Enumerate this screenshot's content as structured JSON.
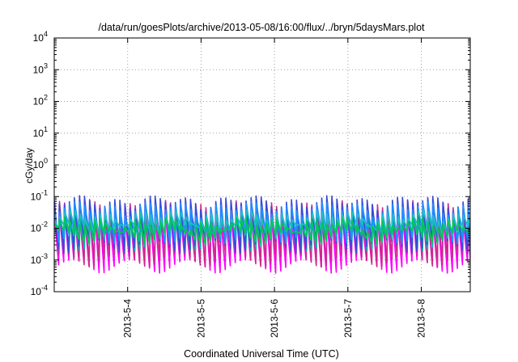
{
  "chart_data": {
    "type": "line",
    "title": "/data/run/goesPlots/archive/2013-05-08/16:00/flux/../bryn/5daysMars.plot",
    "xlabel": "Coordinated Universal Time (UTC)",
    "ylabel": "cGy/day",
    "yscale": "log",
    "grid": true,
    "ylim": [
      0.0001,
      10000
    ],
    "xlim": [
      "2013-05-03 00:00",
      "2013-05-08 16:00"
    ],
    "y_ticks": [
      {
        "value": 0.0001,
        "base": "10",
        "exp": "-4"
      },
      {
        "value": 0.001,
        "base": "10",
        "exp": "-3"
      },
      {
        "value": 0.01,
        "base": "10",
        "exp": "-2"
      },
      {
        "value": 0.1,
        "base": "10",
        "exp": "-1"
      },
      {
        "value": 1,
        "base": "10",
        "exp": "0"
      },
      {
        "value": 10,
        "base": "10",
        "exp": "1"
      },
      {
        "value": 100,
        "base": "10",
        "exp": "2"
      },
      {
        "value": 1000,
        "base": "10",
        "exp": "3"
      },
      {
        "value": 10000,
        "base": "10",
        "exp": "4"
      }
    ],
    "x_ticks": [
      "2013-5-4",
      "2013-5-5",
      "2013-5-6",
      "2013-5-7",
      "2013-5-8"
    ],
    "x_tick_hours": [
      24,
      48,
      72,
      96,
      120
    ],
    "x_range_hours": [
      0,
      136
    ],
    "cycle_hours": 1.65,
    "series": [
      {
        "color": "#ff00ff",
        "peak": 0.03,
        "trough": 0.0007
      },
      {
        "color": "#cc2a8a",
        "peak": 0.05,
        "trough": 0.0011
      },
      {
        "color": "#00b3b3",
        "peak": 0.018,
        "trough": 0.0035
      },
      {
        "color": "#3a4ad8",
        "peak": 0.07,
        "trough": 0.003
      },
      {
        "color": "#1e90ff",
        "peak": 0.045,
        "trough": 0.006
      },
      {
        "color": "#20c0c0",
        "peak": 0.025,
        "trough": 0.009
      },
      {
        "color": "#00c853",
        "peak": 0.015,
        "trough": 0.006
      }
    ]
  }
}
